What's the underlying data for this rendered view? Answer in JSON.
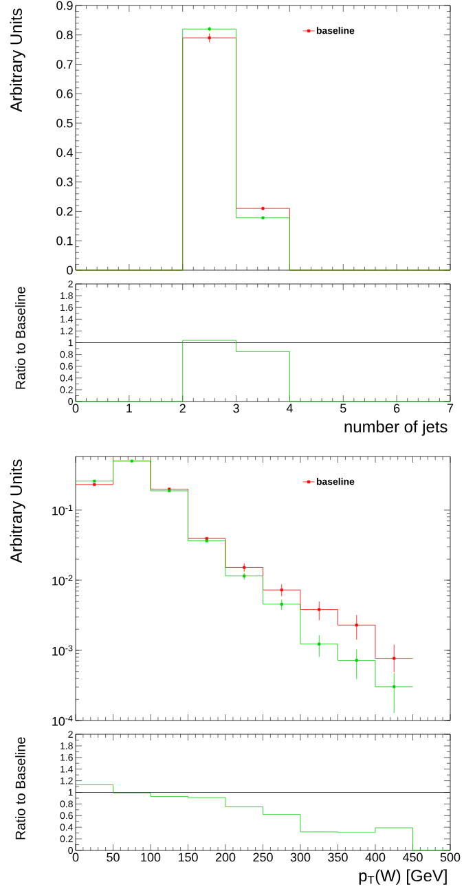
{
  "chart_data": [
    {
      "type": "histogram",
      "ylabel": "Arbitrary Units",
      "bins": [
        0,
        1,
        2,
        3,
        4,
        5,
        6,
        7
      ],
      "xlim": [
        0,
        7
      ],
      "xticks": [
        0,
        1,
        2,
        3,
        4,
        5,
        6,
        7
      ],
      "ylim": [
        0,
        0.9
      ],
      "yticks": [
        0,
        0.1,
        0.2,
        0.3,
        0.4,
        0.5,
        0.6,
        0.7,
        0.8,
        0.9
      ],
      "tick_labels": "y",
      "marker": "square",
      "legend": "top right",
      "series": [
        {
          "name": "baseline",
          "color": "#ff0000",
          "values": [
            0,
            0,
            0.79,
            0.21,
            0,
            0,
            0
          ]
        },
        {
          "color": "#00cc00",
          "values": [
            0,
            0,
            0.82,
            0.178,
            0,
            0,
            0
          ]
        },
        {
          "type": "scatter",
          "color": "#ff0000",
          "x": [
            2.5,
            3.5
          ],
          "values": [
            0.79,
            0.21
          ],
          "errors": [
            0.015,
            0.006
          ]
        },
        {
          "type": "scatter",
          "color": "#00cc00",
          "x": [
            2.5,
            3.5
          ],
          "values": [
            0.82,
            0.178
          ],
          "errors": [
            0.007,
            null
          ]
        }
      ]
    },
    {
      "type": "histogram",
      "ylabel": "Ratio to Baseline",
      "xlabel": "number of jets",
      "bins": [
        0,
        1,
        2,
        3,
        4,
        5,
        6,
        7
      ],
      "xlim": [
        0,
        7
      ],
      "xticks": [
        0,
        1,
        2,
        3,
        4,
        5,
        6,
        7
      ],
      "ylim": [
        0,
        2
      ],
      "yticks": [
        0,
        0.2,
        0.4,
        0.6,
        0.8,
        1,
        1.2,
        1.4,
        1.6,
        1.8,
        2
      ],
      "ref_lines": [
        {
          "axis": "y",
          "value": 1,
          "color": "#000000"
        }
      ],
      "series": [
        {
          "color": "#00cc00",
          "values": [
            0,
            0,
            1.04,
            0.85,
            0,
            0,
            0
          ]
        }
      ]
    },
    {
      "type": "histogram",
      "ylabel": "Arbitrary Units",
      "bins": [
        0,
        50,
        100,
        150,
        200,
        250,
        300,
        350,
        400,
        450
      ],
      "xlim": [
        0,
        500
      ],
      "xticks": [
        0,
        50,
        100,
        150,
        200,
        250,
        300,
        350,
        400,
        450,
        500
      ],
      "ylim": [
        0.0001,
        0.58
      ],
      "log": "y",
      "yticks": [
        {
          "value": 0.0001,
          "label": "10$^{-4}$"
        },
        {
          "value": 0.001,
          "label": "10$^{-3}$"
        },
        {
          "value": 0.01,
          "label": "10$^{-2}$"
        },
        {
          "value": 0.1,
          "label": "10$^{-1}$"
        }
      ],
      "tick_labels": "y",
      "marker": "square",
      "legend": "top right",
      "series": [
        {
          "name": "baseline",
          "color": "#ff0000",
          "values": [
            0.231,
            0.5,
            0.199,
            0.0394,
            0.0152,
            0.00726,
            0.00382,
            0.00229,
            0.00077
          ]
        },
        {
          "color": "#00cc00",
          "values": [
            0.259,
            0.5,
            0.188,
            0.0364,
            0.0115,
            0.00455,
            0.00123,
            0.00072,
            0.000303
          ]
        },
        {
          "type": "scatter",
          "color": "#ff0000",
          "x": [
            25,
            75,
            125,
            175,
            225,
            275,
            325,
            375,
            425
          ],
          "values": [
            0.231,
            null,
            0.199,
            0.0394,
            0.0152,
            0.00726,
            0.00382,
            0.00229,
            0.00077
          ],
          "errors": [
            null,
            null,
            null,
            null,
            [
              0.0132,
              0.0174
            ],
            [
              0.00592,
              0.00873
            ],
            [
              0.00269,
              0.00497
            ],
            [
              0.00142,
              0.00318
            ],
            [
              0.000488,
              0.00121
            ]
          ]
        },
        {
          "type": "scatter",
          "color": "#00cc00",
          "x": [
            25,
            75,
            125,
            175,
            225,
            275,
            325,
            375,
            425
          ],
          "values": [
            0.259,
            0.5,
            0.188,
            0.0364,
            0.0115,
            0.00455,
            0.00123,
            0.00072,
            0.000303
          ],
          "errors": [
            null,
            null,
            null,
            null,
            [
              0.0102,
              0.0127
            ],
            [
              0.00379,
              0.00532
            ],
            [
              0.000807,
              0.00164
            ],
            [
              0.00039,
              0.00103
            ],
            [
              0.000128,
              0.000473
            ]
          ]
        }
      ]
    },
    {
      "type": "histogram",
      "ylabel": "Ratio to Baseline",
      "xlabel": "p$_{T}$(W) [GeV]",
      "bins": [
        0,
        50,
        100,
        150,
        200,
        250,
        300,
        350,
        400,
        450,
        500
      ],
      "xlim": [
        0,
        500
      ],
      "xticks": [
        0,
        50,
        100,
        150,
        200,
        250,
        300,
        350,
        400,
        450,
        500
      ],
      "ylim": [
        0,
        2
      ],
      "yticks": [
        0,
        0.2,
        0.4,
        0.6,
        0.8,
        1,
        1.2,
        1.4,
        1.6,
        1.8,
        2
      ],
      "ref_lines": [
        {
          "axis": "y",
          "value": 1,
          "color": "#000000"
        }
      ],
      "series": [
        {
          "color": "#00cc00",
          "values": [
            1.13,
            0.99,
            0.93,
            0.91,
            0.75,
            0.62,
            0.32,
            0.31,
            0.39,
            0
          ]
        }
      ]
    }
  ]
}
